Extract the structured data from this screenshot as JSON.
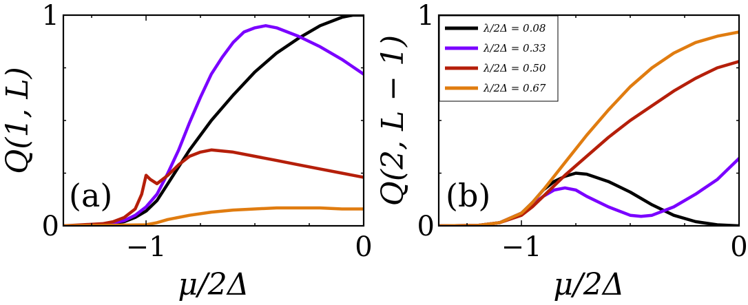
{
  "chart_data": [
    {
      "type": "line",
      "panel_label": "(a)",
      "ylabel": "Q(1, L)",
      "xlabel": "μ/2Δ",
      "xlim": [
        -1.38,
        0
      ],
      "ylim": [
        0,
        1
      ],
      "xticks": [
        -1,
        0
      ],
      "xtick_labels": [
        "−1",
        "0"
      ],
      "yticks": [
        0,
        1
      ],
      "ytick_labels": [
        "0",
        "1"
      ],
      "minor_yticks": [
        0.25,
        0.5,
        0.75
      ],
      "series": [
        {
          "name": "λ/2Δ = 0.08",
          "color": "#000000",
          "x": [
            -1.38,
            -1.3,
            -1.2,
            -1.1,
            -1.05,
            -1.0,
            -0.95,
            -0.9,
            -0.85,
            -0.8,
            -0.7,
            -0.6,
            -0.5,
            -0.4,
            -0.3,
            -0.2,
            -0.1,
            -0.05,
            0
          ],
          "y": [
            0,
            0.001,
            0.005,
            0.02,
            0.04,
            0.07,
            0.12,
            0.2,
            0.28,
            0.36,
            0.5,
            0.62,
            0.73,
            0.82,
            0.89,
            0.95,
            0.99,
            1.0,
            1.0
          ]
        },
        {
          "name": "λ/2Δ = 0.33",
          "color": "#7a00ff",
          "x": [
            -1.38,
            -1.2,
            -1.1,
            -1.05,
            -1.0,
            -0.95,
            -0.9,
            -0.85,
            -0.8,
            -0.75,
            -0.7,
            -0.65,
            -0.6,
            -0.55,
            -0.5,
            -0.45,
            -0.4,
            -0.3,
            -0.2,
            -0.1,
            0
          ],
          "y": [
            0,
            0.005,
            0.025,
            0.05,
            0.09,
            0.15,
            0.25,
            0.36,
            0.49,
            0.61,
            0.72,
            0.8,
            0.87,
            0.92,
            0.94,
            0.95,
            0.94,
            0.9,
            0.85,
            0.79,
            0.72
          ]
        },
        {
          "name": "λ/2Δ = 0.50",
          "color": "#b51f0a",
          "x": [
            -1.38,
            -1.2,
            -1.15,
            -1.1,
            -1.05,
            -1.02,
            -1.0,
            -0.98,
            -0.95,
            -0.9,
            -0.85,
            -0.8,
            -0.75,
            -0.7,
            -0.6,
            -0.5,
            -0.4,
            -0.3,
            -0.2,
            -0.1,
            0
          ],
          "y": [
            0,
            0.01,
            0.02,
            0.04,
            0.08,
            0.15,
            0.24,
            0.22,
            0.2,
            0.24,
            0.29,
            0.33,
            0.35,
            0.36,
            0.35,
            0.33,
            0.31,
            0.29,
            0.27,
            0.25,
            0.23
          ]
        },
        {
          "name": "λ/2Δ = 0.67",
          "color": "#e07c10",
          "x": [
            -1.38,
            -1.0,
            -0.95,
            -0.9,
            -0.8,
            -0.7,
            -0.6,
            -0.5,
            -0.4,
            -0.3,
            -0.2,
            -0.1,
            0
          ],
          "y": [
            0,
            0.005,
            0.015,
            0.03,
            0.05,
            0.065,
            0.075,
            0.08,
            0.085,
            0.085,
            0.085,
            0.08,
            0.08
          ]
        }
      ]
    },
    {
      "type": "line",
      "panel_label": "(b)",
      "ylabel": "Q(2, L − 1)",
      "xlabel": "μ/2Δ",
      "xlim": [
        -1.38,
        0
      ],
      "ylim": [
        0,
        1
      ],
      "xticks": [
        -1,
        0
      ],
      "xtick_labels": [
        "−1",
        "0"
      ],
      "yticks": [
        0,
        1
      ],
      "ytick_labels": [
        "0",
        "1"
      ],
      "minor_yticks": [
        0.25,
        0.5,
        0.75
      ],
      "legend": {
        "position": "top-left"
      },
      "series": [
        {
          "name": "λ/2Δ = 0.08",
          "label_value": "0.08",
          "color": "#000000",
          "x": [
            -1.38,
            -1.2,
            -1.1,
            -1.0,
            -0.95,
            -0.9,
            -0.85,
            -0.8,
            -0.75,
            -0.7,
            -0.6,
            -0.5,
            -0.4,
            -0.3,
            -0.2,
            -0.1,
            0
          ],
          "y": [
            0,
            0.002,
            0.015,
            0.06,
            0.11,
            0.17,
            0.21,
            0.235,
            0.25,
            0.245,
            0.21,
            0.16,
            0.1,
            0.05,
            0.02,
            0.005,
            0
          ]
        },
        {
          "name": "λ/2Δ = 0.33",
          "label_value": "0.33",
          "color": "#7a00ff",
          "x": [
            -1.38,
            -1.2,
            -1.1,
            -1.0,
            -0.95,
            -0.9,
            -0.85,
            -0.8,
            -0.75,
            -0.7,
            -0.6,
            -0.5,
            -0.45,
            -0.4,
            -0.3,
            -0.2,
            -0.1,
            0
          ],
          "y": [
            0,
            0.002,
            0.015,
            0.06,
            0.1,
            0.14,
            0.17,
            0.18,
            0.17,
            0.14,
            0.09,
            0.05,
            0.045,
            0.05,
            0.09,
            0.15,
            0.22,
            0.32
          ]
        },
        {
          "name": "λ/2Δ = 0.50",
          "label_value": "0.50",
          "color": "#b51f0a",
          "x": [
            -1.38,
            -1.2,
            -1.1,
            -1.0,
            -0.95,
            -0.9,
            -0.8,
            -0.7,
            -0.6,
            -0.5,
            -0.4,
            -0.3,
            -0.2,
            -0.1,
            0
          ],
          "y": [
            0,
            0.002,
            0.015,
            0.05,
            0.09,
            0.14,
            0.24,
            0.33,
            0.42,
            0.5,
            0.57,
            0.64,
            0.7,
            0.75,
            0.78
          ]
        },
        {
          "name": "λ/2Δ = 0.67",
          "label_value": "0.67",
          "color": "#e07c10",
          "x": [
            -1.38,
            -1.2,
            -1.1,
            -1.0,
            -0.95,
            -0.9,
            -0.8,
            -0.7,
            -0.6,
            -0.5,
            -0.4,
            -0.3,
            -0.2,
            -0.1,
            0
          ],
          "y": [
            0,
            0.002,
            0.015,
            0.06,
            0.11,
            0.17,
            0.3,
            0.43,
            0.55,
            0.66,
            0.75,
            0.82,
            0.87,
            0.9,
            0.92
          ]
        }
      ]
    }
  ]
}
